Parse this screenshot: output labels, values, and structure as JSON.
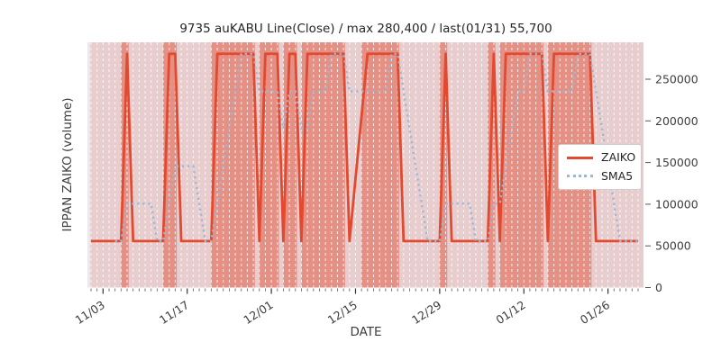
{
  "chart_data": {
    "type": "line",
    "title": "9735 auKABU Line(Close) / max 280,400 / last(01/31) 55,700",
    "xlabel": "DATE",
    "ylabel": "IPPAN ZAIKO (volume)",
    "x_axis": {
      "start_date": "11/01",
      "end_date": "01/31",
      "days_total": 92,
      "tick_labels": [
        "11/03",
        "11/17",
        "12/01",
        "12/15",
        "12/29",
        "01/12",
        "01/26"
      ],
      "tick_day_index": [
        2,
        16,
        30,
        44,
        58,
        72,
        86
      ],
      "note": "day_index counts days from 11/01 (0) to 01/31 (91); days 44-45 (12/15-12/16) have no data points",
      "minor_ticks": "daily"
    },
    "y_axis": {
      "side": "right",
      "ticks": [
        0,
        50000,
        100000,
        150000,
        200000,
        250000
      ],
      "tick_labels": [
        "0",
        "50000",
        "100000",
        "150000",
        "200000",
        "250000"
      ],
      "ylim": [
        0,
        294000
      ]
    },
    "levels": {
      "low": 55700,
      "high": 280400,
      "max": 280400,
      "last": 55700,
      "last_date": "01/31"
    },
    "legend": {
      "position": "center-right",
      "entries": [
        {
          "label": "ZAIKO",
          "color": "#e2492f",
          "line_style": "solid"
        },
        {
          "label": "SMA5",
          "color": "#99b8d8",
          "line_style": "dotted"
        }
      ]
    },
    "background": {
      "plot_bg": "#e9e9ee",
      "band_high": "rgba(226,73,47,0.46)",
      "band_low": "rgba(226,73,47,0.17)",
      "grid_color": "#ffffff",
      "grid_style": "vertical dashed, one per day"
    },
    "series": [
      {
        "name": "ZAIKO",
        "color": "#e2492f",
        "line_style": "solid",
        "day_index": [
          0,
          1,
          2,
          3,
          4,
          5,
          6,
          7,
          8,
          9,
          10,
          11,
          12,
          13,
          14,
          15,
          16,
          17,
          18,
          19,
          20,
          21,
          22,
          23,
          24,
          25,
          26,
          27,
          28,
          29,
          30,
          31,
          32,
          33,
          34,
          35,
          36,
          37,
          38,
          39,
          40,
          41,
          42,
          43,
          46,
          47,
          48,
          49,
          50,
          51,
          52,
          53,
          54,
          55,
          56,
          57,
          58,
          59,
          60,
          61,
          62,
          63,
          64,
          65,
          66,
          67,
          68,
          69,
          70,
          71,
          72,
          73,
          74,
          75,
          76,
          77,
          78,
          79,
          80,
          81,
          82,
          83,
          84,
          85,
          86,
          87,
          88,
          89,
          90,
          91
        ],
        "values": [
          55700,
          55700,
          55700,
          55700,
          55700,
          55700,
          280400,
          55700,
          55700,
          55700,
          55700,
          55700,
          55700,
          280400,
          280400,
          55700,
          55700,
          55700,
          55700,
          55700,
          55700,
          280400,
          280400,
          280400,
          280400,
          280400,
          280400,
          280400,
          55700,
          280400,
          280400,
          280400,
          55700,
          280400,
          280400,
          55700,
          280400,
          280400,
          280400,
          280400,
          280400,
          280400,
          280400,
          55700,
          280400,
          280400,
          280400,
          280400,
          280400,
          280400,
          55700,
          55700,
          55700,
          55700,
          55700,
          55700,
          55700,
          280400,
          55700,
          55700,
          55700,
          55700,
          55700,
          55700,
          55700,
          280400,
          55700,
          280400,
          280400,
          280400,
          280400,
          280400,
          280400,
          280400,
          55700,
          280400,
          280400,
          280400,
          280400,
          280400,
          280400,
          280400,
          55700,
          55700,
          55700,
          55700,
          55700,
          55700,
          55700,
          55700
        ]
      },
      {
        "name": "SMA5",
        "color": "#99b8d8",
        "line_style": "dotted",
        "day_index": [
          4,
          5,
          6,
          7,
          8,
          9,
          10,
          11,
          12,
          13,
          14,
          15,
          16,
          17,
          18,
          19,
          20,
          21,
          22,
          23,
          24,
          25,
          26,
          27,
          28,
          29,
          30,
          31,
          32,
          33,
          34,
          35,
          36,
          37,
          38,
          39,
          40,
          41,
          42,
          43,
          46,
          47,
          48,
          49,
          50,
          51,
          52,
          53,
          54,
          55,
          56,
          57,
          58,
          59,
          60,
          61,
          62,
          63,
          64,
          65,
          66,
          67,
          68,
          69,
          70,
          71,
          72,
          73,
          74,
          75,
          76,
          77,
          78,
          79,
          80,
          81,
          82,
          83,
          84,
          85,
          86,
          87,
          88,
          89,
          90,
          91
        ],
        "values": [
          55700,
          55700,
          100640,
          100640,
          100640,
          100640,
          100640,
          55700,
          55700,
          100640,
          145580,
          145580,
          145580,
          145580,
          100640,
          55700,
          55700,
          100640,
          145580,
          190520,
          235460,
          280400,
          280400,
          280400,
          235460,
          235460,
          235460,
          235460,
          190520,
          235460,
          235460,
          190520,
          190520,
          235460,
          235460,
          235460,
          280400,
          280400,
          280400,
          235460,
          235460,
          235460,
          235460,
          235460,
          280400,
          280400,
          235460,
          190520,
          145580,
          100640,
          55700,
          55700,
          55700,
          100640,
          100640,
          100640,
          100640,
          100640,
          55700,
          55700,
          55700,
          100640,
          100640,
          145580,
          190520,
          235460,
          235460,
          280400,
          280400,
          280400,
          235460,
          235460,
          235460,
          235460,
          235460,
          280400,
          280400,
          280400,
          235460,
          190520,
          145580,
          100640,
          55700,
          55700,
          55700,
          55700
        ]
      }
    ]
  }
}
